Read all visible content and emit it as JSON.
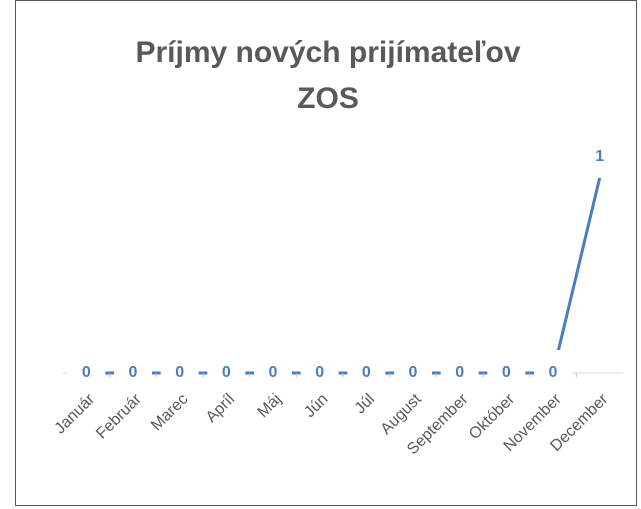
{
  "chart_data": {
    "type": "line",
    "title": "Príjmy nových prijímateľov ZOS",
    "categories": [
      "Január",
      "Február",
      "Marec",
      "Apríl",
      "Máj",
      "Jún",
      "Júl",
      "August",
      "September",
      "Október",
      "November",
      "December"
    ],
    "series": [
      {
        "name": "Príjmy",
        "color": "#4a7ebb",
        "values": [
          0,
          0,
          0,
          0,
          0,
          0,
          0,
          0,
          0,
          0,
          0,
          1
        ]
      }
    ],
    "ylim": [
      0,
      1
    ]
  }
}
